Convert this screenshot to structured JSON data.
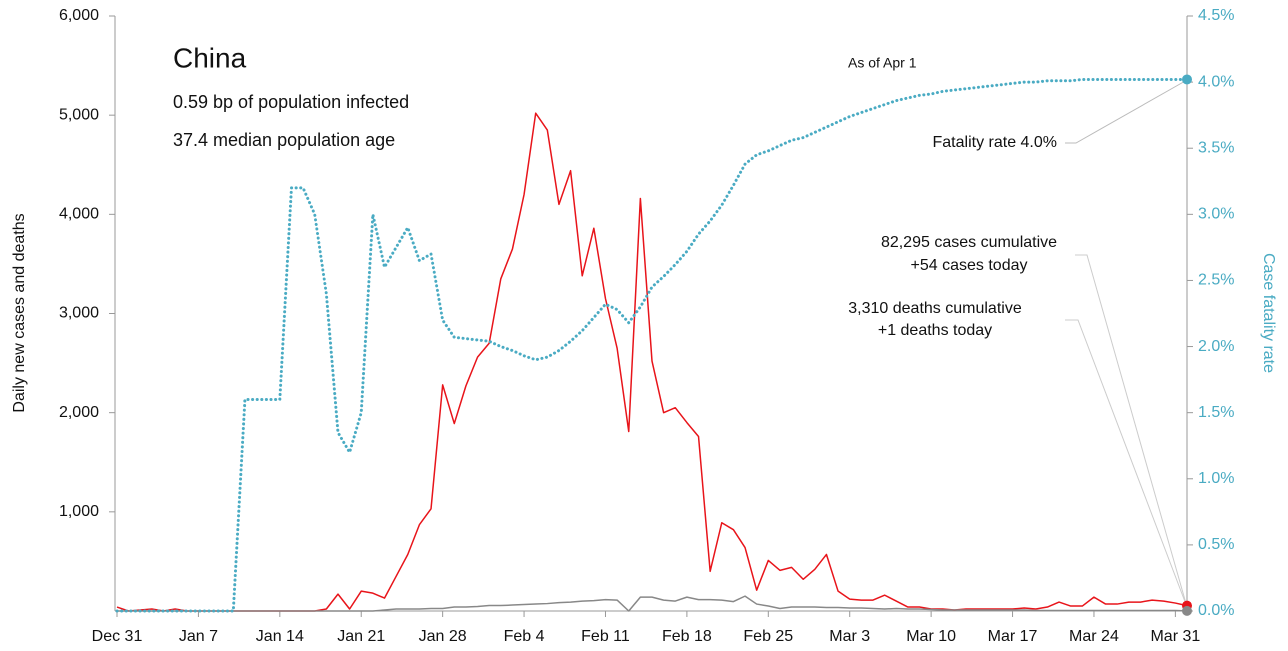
{
  "chart_data": {
    "type": "line",
    "title": "China",
    "subtitle": [
      "0.59 bp of population infected",
      "37.4 median population age"
    ],
    "annotations": {
      "as_of": "As of Apr 1",
      "fatality": "Fatality rate 4.0%",
      "cases": [
        "82,295 cases cumulative",
        "+54 cases today"
      ],
      "deaths": [
        "3,310 deaths cumulative",
        "+1 deaths today"
      ]
    },
    "ylabel": "Daily new cases and deaths",
    "y2label": "Case fatality rate",
    "categories": [
      "Dec 31",
      null,
      null,
      null,
      null,
      null,
      null,
      "Jan 7",
      null,
      null,
      null,
      null,
      null,
      null,
      "Jan 14",
      null,
      null,
      null,
      null,
      null,
      null,
      "Jan 21",
      null,
      null,
      null,
      null,
      null,
      null,
      "Jan 28",
      null,
      null,
      null,
      null,
      null,
      null,
      "Feb 4",
      null,
      null,
      null,
      null,
      null,
      null,
      "Feb 11",
      null,
      null,
      null,
      null,
      null,
      null,
      "Feb 18",
      null,
      null,
      null,
      null,
      null,
      null,
      "Feb 25",
      null,
      null,
      null,
      null,
      null,
      null,
      "Mar 3",
      null,
      null,
      null,
      null,
      null,
      null,
      "Mar 10",
      null,
      null,
      null,
      null,
      null,
      null,
      "Mar 17",
      null,
      null,
      null,
      null,
      null,
      null,
      "Mar 24",
      null,
      null,
      null,
      null,
      null,
      null,
      "Mar 31",
      null
    ],
    "series": [
      {
        "color": "#e8141a",
        "values": [
          40,
          0,
          10,
          20,
          0,
          20,
          0,
          0,
          0,
          0,
          0,
          0,
          0,
          0,
          0,
          0,
          0,
          0,
          20,
          170,
          20,
          200,
          180,
          130,
          350,
          570,
          870,
          1030,
          2280,
          1890,
          2270,
          2560,
          2700,
          3350,
          3650,
          4200,
          5020,
          4850,
          4100,
          4440,
          3380,
          3860,
          3150,
          2650,
          1810,
          4160,
          2520,
          2000,
          2050,
          1900,
          1760,
          400,
          890,
          820,
          640,
          210,
          510,
          410,
          440,
          320,
          420,
          570,
          200,
          120,
          110,
          110,
          160,
          100,
          40,
          40,
          20,
          20,
          10,
          20,
          20,
          20,
          20,
          20,
          30,
          20,
          40,
          90,
          50,
          50,
          140,
          70,
          70,
          90,
          90,
          110,
          100,
          80,
          54
        ]
      },
      {
        "color": "#888888",
        "values": [
          0,
          0,
          0,
          0,
          0,
          0,
          0,
          0,
          0,
          0,
          0,
          0,
          0,
          0,
          0,
          0,
          0,
          0,
          0,
          0,
          0,
          0,
          0,
          10,
          20,
          20,
          20,
          25,
          25,
          40,
          40,
          45,
          55,
          55,
          60,
          65,
          70,
          75,
          85,
          90,
          100,
          105,
          115,
          110,
          0,
          140,
          140,
          110,
          100,
          140,
          115,
          115,
          110,
          95,
          150,
          70,
          50,
          25,
          40,
          40,
          40,
          35,
          35,
          30,
          30,
          25,
          20,
          25,
          20,
          20,
          15,
          10,
          10,
          10,
          10,
          10,
          10,
          10,
          10,
          5,
          5,
          5,
          5,
          5,
          5,
          5,
          5,
          5,
          5,
          5,
          5,
          5,
          1
        ]
      },
      {
        "color": "#4aabc3",
        "axis": "y2",
        "dotted": true,
        "values": [
          0,
          0,
          0,
          0,
          0,
          0,
          0,
          0,
          0,
          0,
          0,
          1.6,
          1.6,
          1.6,
          1.6,
          3.2,
          3.2,
          3.0,
          2.4,
          1.35,
          1.2,
          1.5,
          3.0,
          2.6,
          2.75,
          2.9,
          2.65,
          2.7,
          2.2,
          2.07,
          2.06,
          2.05,
          2.04,
          2.0,
          1.97,
          1.93,
          1.9,
          1.92,
          1.97,
          2.04,
          2.12,
          2.22,
          2.32,
          2.28,
          2.18,
          2.3,
          2.45,
          2.53,
          2.62,
          2.72,
          2.85,
          2.95,
          3.07,
          3.22,
          3.38,
          3.45,
          3.48,
          3.52,
          3.56,
          3.58,
          3.62,
          3.66,
          3.7,
          3.74,
          3.77,
          3.8,
          3.83,
          3.86,
          3.88,
          3.9,
          3.91,
          3.93,
          3.94,
          3.95,
          3.96,
          3.97,
          3.98,
          3.99,
          4.0,
          4.0,
          4.01,
          4.01,
          4.01,
          4.02,
          4.02,
          4.02,
          4.02,
          4.02,
          4.02,
          4.02,
          4.02,
          4.02,
          4.02
        ]
      }
    ],
    "ylim": [
      0,
      6000
    ],
    "yticks": [
      {
        "value": 1000,
        "label": "1,000"
      },
      {
        "value": 2000,
        "label": "2,000"
      },
      {
        "value": 3000,
        "label": "3,000"
      },
      {
        "value": 4000,
        "label": "4,000"
      },
      {
        "value": 5000,
        "label": "5,000"
      },
      {
        "value": 6000,
        "label": "6,000"
      }
    ],
    "y2lim": [
      0,
      4.5
    ],
    "y2ticks": [
      {
        "value": 0,
        "label": "0.0%"
      },
      {
        "value": 0.5,
        "label": "0.5%"
      },
      {
        "value": 1,
        "label": "1.0%"
      },
      {
        "value": 1.5,
        "label": "1.5%"
      },
      {
        "value": 2,
        "label": "2.0%"
      },
      {
        "value": 2.5,
        "label": "2.5%"
      },
      {
        "value": 3,
        "label": "3.0%"
      },
      {
        "value": 3.5,
        "label": "3.5%"
      },
      {
        "value": 4,
        "label": "4.0%"
      },
      {
        "value": 4.5,
        "label": "4.5%"
      }
    ],
    "y2color": "#4aabc3"
  }
}
